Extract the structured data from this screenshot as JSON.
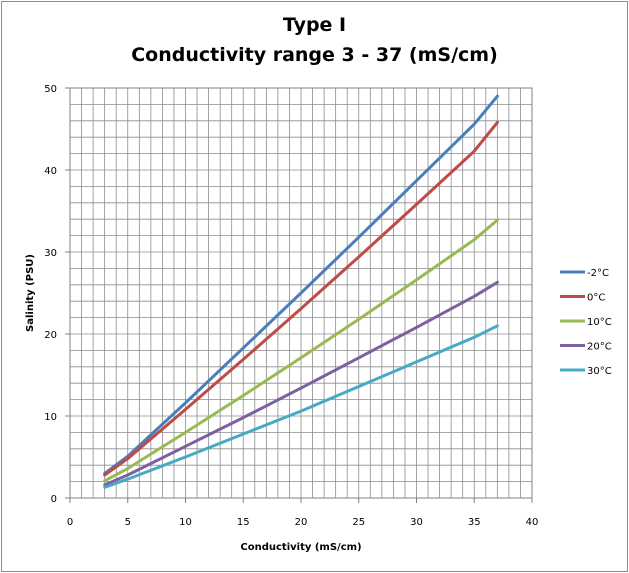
{
  "chart_data": {
    "type": "line",
    "title_line1": "Type I",
    "title_line2": "Conductivity range 3 - 37 (mS/cm)",
    "xlabel": "Conductivity (mS/cm)",
    "ylabel": "Salinity (PSU)",
    "xlim": [
      0,
      40
    ],
    "ylim": [
      0,
      50
    ],
    "xticks": [
      0,
      5,
      10,
      15,
      20,
      25,
      30,
      35,
      40
    ],
    "yticks": [
      0,
      10,
      20,
      30,
      40,
      50
    ],
    "grid": true,
    "legend_position": "right",
    "x": [
      3,
      5,
      10,
      15,
      20,
      25,
      30,
      35,
      37
    ],
    "series": [
      {
        "name": "-2°C",
        "color": "#4a7ebb",
        "values": [
          3.0,
          5.1,
          11.6,
          18.3,
          25.0,
          31.8,
          38.7,
          45.6,
          49.0
        ]
      },
      {
        "name": "0°C",
        "color": "#be4b48",
        "values": [
          2.8,
          4.8,
          10.8,
          16.9,
          23.1,
          29.4,
          35.8,
          42.3,
          45.8
        ]
      },
      {
        "name": "10°C",
        "color": "#98b954",
        "values": [
          2.1,
          3.6,
          8.0,
          12.5,
          17.1,
          21.8,
          26.6,
          31.5,
          33.9
        ]
      },
      {
        "name": "20°C",
        "color": "#7d60a0",
        "values": [
          1.6,
          2.8,
          6.3,
          9.8,
          13.4,
          17.1,
          20.8,
          24.6,
          26.3
        ]
      },
      {
        "name": "30°C",
        "color": "#46aac5",
        "values": [
          1.3,
          2.3,
          5.0,
          7.8,
          10.6,
          13.6,
          16.6,
          19.6,
          21.0
        ]
      }
    ]
  }
}
